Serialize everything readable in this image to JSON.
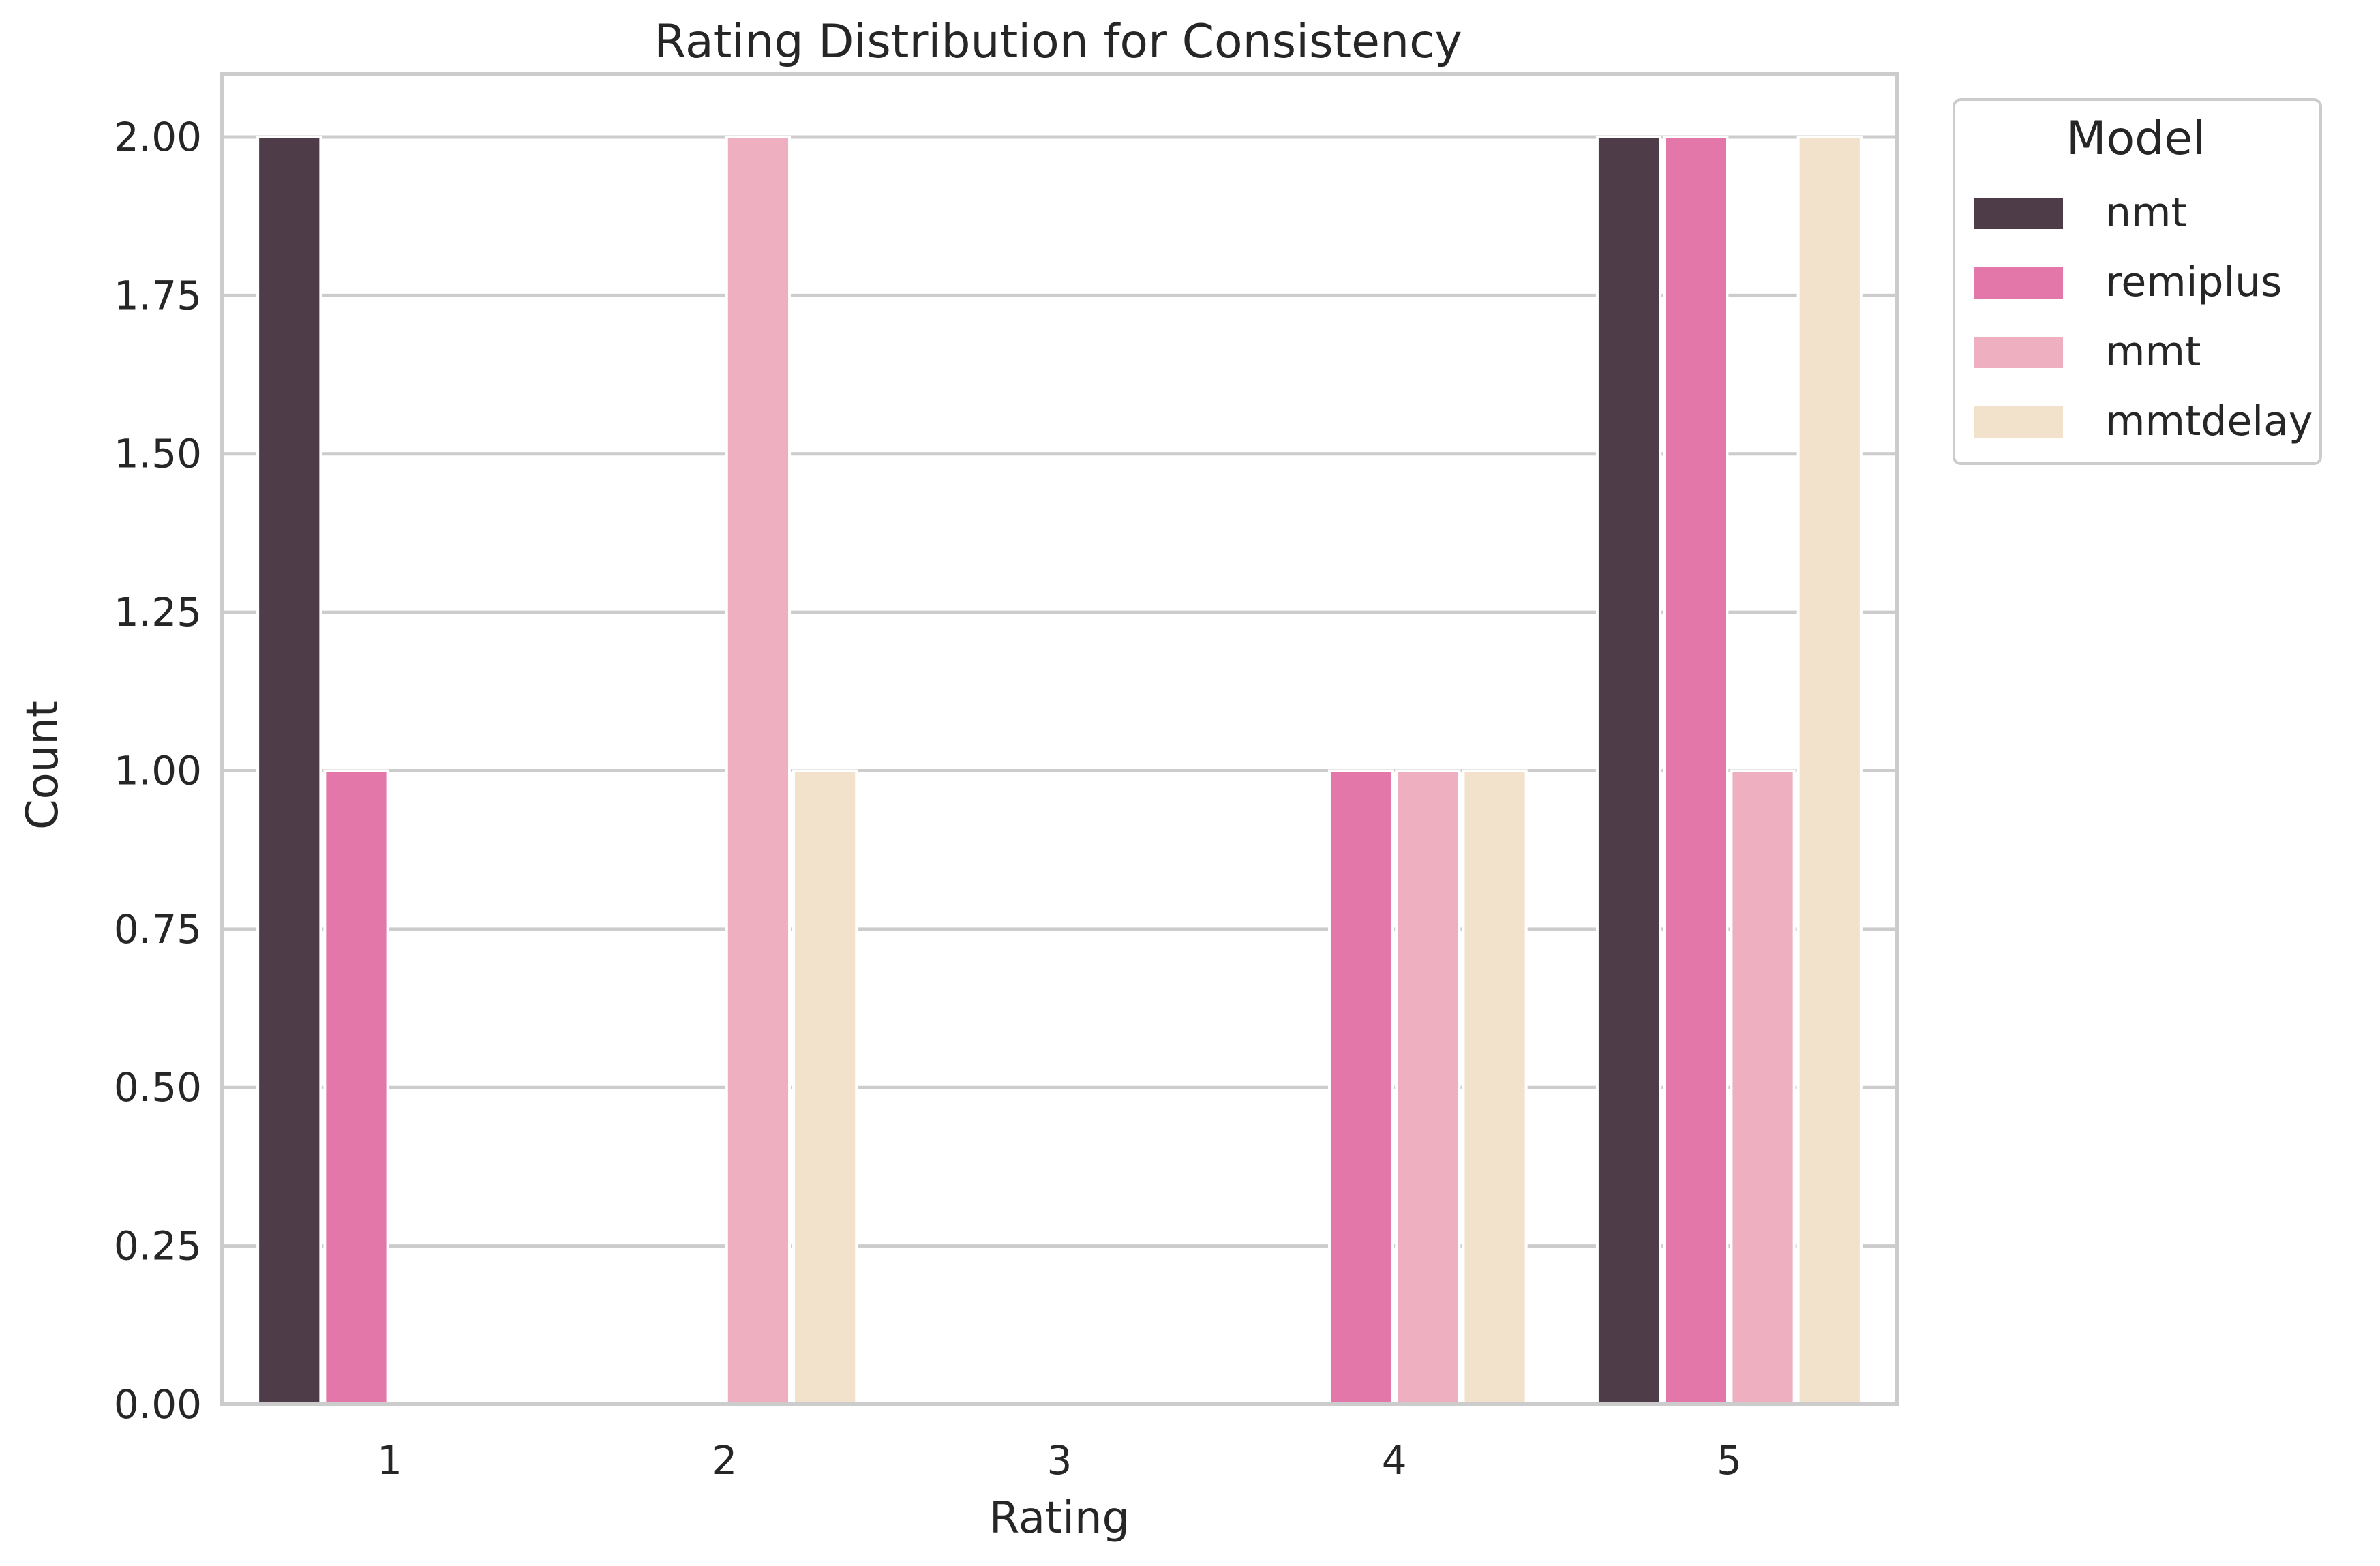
{
  "chart_data": {
    "type": "bar",
    "title": "Rating Distribution for Consistency",
    "xlabel": "Rating",
    "ylabel": "Count",
    "categories": [
      "1",
      "2",
      "3",
      "4",
      "5"
    ],
    "ylim": [
      0,
      2.1
    ],
    "yticks": [
      "0.00",
      "0.25",
      "0.50",
      "0.75",
      "1.00",
      "1.25",
      "1.50",
      "1.75",
      "2.00"
    ],
    "grid": true,
    "legend": {
      "title": "Model",
      "placement": "outside-top-right"
    },
    "series": [
      {
        "name": "nmt",
        "color": "#4f3c49",
        "values": [
          2,
          0,
          0,
          0,
          2
        ]
      },
      {
        "name": "remiplus",
        "color": "#e377aa",
        "values": [
          1,
          0,
          0,
          1,
          2
        ]
      },
      {
        "name": "mmt",
        "color": "#eeafc1",
        "values": [
          0,
          2,
          0,
          1,
          1
        ]
      },
      {
        "name": "mmtdelay",
        "color": "#f2e2cc",
        "values": [
          0,
          1,
          0,
          1,
          2
        ]
      }
    ]
  }
}
